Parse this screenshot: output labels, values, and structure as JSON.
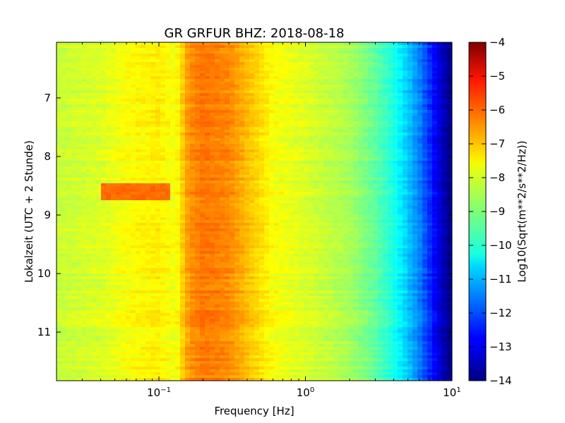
{
  "chart_data": {
    "type": "heatmap",
    "title": "GR GRFUR BHZ: 2018-08-18",
    "xlabel": "Frequency [Hz]",
    "ylabel": "Lokalzeit (UTC + 2 Stunde)",
    "colorbar_label": "Log10(Sqrt(m**2/s**2/Hz))",
    "x_scale": "log",
    "xlim": [
      0.02,
      10
    ],
    "ylim": [
      11.83,
      6.05
    ],
    "y_inverted": true,
    "colorbar_range": [
      -14,
      -4
    ],
    "colormap": "jet",
    "x_ticks": [
      {
        "value": 0.1,
        "base": "10",
        "exp": "−1"
      },
      {
        "value": 1,
        "base": "10",
        "exp": "0"
      },
      {
        "value": 10,
        "base": "10",
        "exp": "1"
      }
    ],
    "y_ticks": [
      {
        "value": 7,
        "label": "7"
      },
      {
        "value": 8,
        "label": "8"
      },
      {
        "value": 9,
        "label": "9"
      },
      {
        "value": 10,
        "label": "10"
      },
      {
        "value": 11,
        "label": "11"
      }
    ],
    "colorbar_ticks": [
      {
        "value": -4,
        "label": "−4"
      },
      {
        "value": -5,
        "label": "−5"
      },
      {
        "value": -6,
        "label": "−6"
      },
      {
        "value": -7,
        "label": "−7"
      },
      {
        "value": -8,
        "label": "−8"
      },
      {
        "value": -9,
        "label": "−9"
      },
      {
        "value": -10,
        "label": "−10"
      },
      {
        "value": -11,
        "label": "−11"
      },
      {
        "value": -12,
        "label": "−12"
      },
      {
        "value": -13,
        "label": "−13"
      },
      {
        "value": -14,
        "label": "−14"
      }
    ],
    "frequency_profile": [
      {
        "hz": 0.02,
        "value": -8.3
      },
      {
        "hz": 0.04,
        "value": -8.1
      },
      {
        "hz": 0.06,
        "value": -7.8
      },
      {
        "hz": 0.1,
        "value": -7.6
      },
      {
        "hz": 0.13,
        "value": -7.9
      },
      {
        "hz": 0.16,
        "value": -6.7
      },
      {
        "hz": 0.2,
        "value": -6.4
      },
      {
        "hz": 0.3,
        "value": -6.6
      },
      {
        "hz": 0.45,
        "value": -7.3
      },
      {
        "hz": 0.6,
        "value": -7.8
      },
      {
        "hz": 1.0,
        "value": -8.1
      },
      {
        "hz": 2.0,
        "value": -8.6
      },
      {
        "hz": 3.0,
        "value": -9.3
      },
      {
        "hz": 4.0,
        "value": -10.0
      },
      {
        "hz": 5.0,
        "value": -10.8
      },
      {
        "hz": 6.0,
        "value": -11.5
      },
      {
        "hz": 7.0,
        "value": -12.3
      },
      {
        "hz": 8.0,
        "value": -13.0
      },
      {
        "hz": 9.0,
        "value": -13.6
      },
      {
        "hz": 10.0,
        "value": -14.0
      }
    ],
    "events": [
      {
        "t_start": 8.45,
        "t_end": 8.75,
        "f_start": 0.04,
        "f_end": 0.12,
        "value": -6.3
      }
    ]
  }
}
